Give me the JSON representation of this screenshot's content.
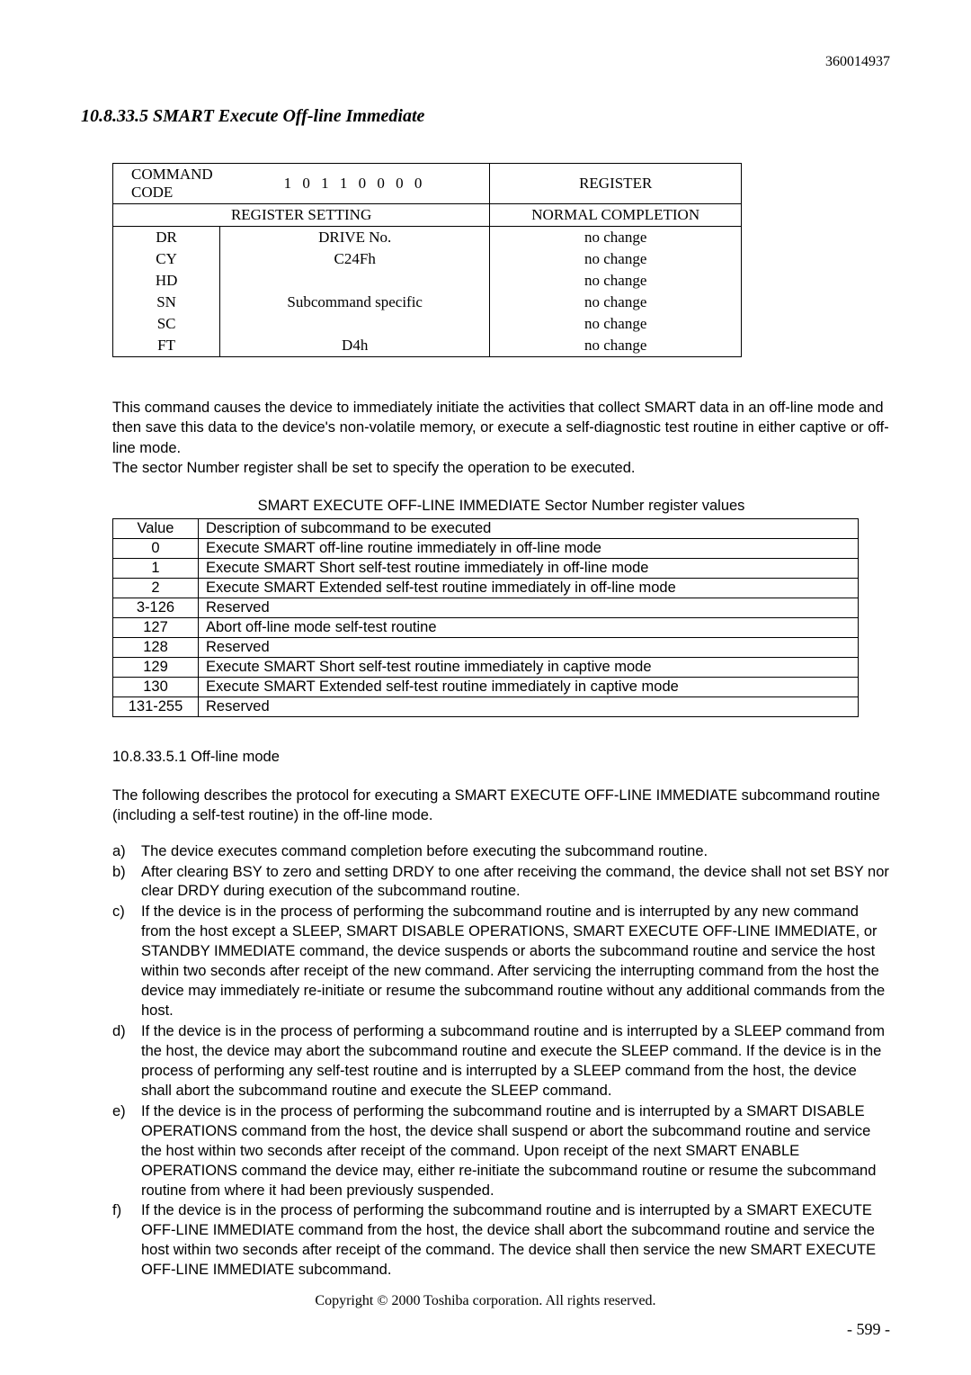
{
  "doc_number": "360014937",
  "section_heading": "10.8.33.5  SMART Execute Off-line Immediate",
  "reg_table": {
    "header1": {
      "label": "COMMAND CODE",
      "code": "1 0 1 1 0 0 0 0",
      "register": "REGISTER"
    },
    "header2": {
      "setting": "REGISTER SETTING",
      "completion": "NORMAL COMPLETION"
    },
    "rows": [
      {
        "reg": "DR",
        "setting": "DRIVE No.",
        "completion": "no change"
      },
      {
        "reg": "CY",
        "setting": "C24Fh",
        "completion": "no change"
      },
      {
        "reg": "HD",
        "setting": "",
        "completion": "no change"
      },
      {
        "reg": "SN",
        "setting": "Subcommand specific",
        "completion": "no change"
      },
      {
        "reg": "SC",
        "setting": "",
        "completion": "no change"
      },
      {
        "reg": "FT",
        "setting": "D4h",
        "completion": "no change"
      }
    ]
  },
  "desc_p1": "This command causes the device to immediately initiate the activities that collect SMART data in an off-line mode and then save this data to the device's non-volatile memory, or execute a self-diagnostic test routine in either captive or off-line mode.",
  "desc_p2": "The sector Number register shall be set to specify the operation to be executed.",
  "sector_caption": "SMART EXECUTE OFF-LINE IMMEDIATE Sector Number register values",
  "sector_table": {
    "header": {
      "value": "Value",
      "desc": "Description of subcommand to be executed"
    },
    "rows": [
      {
        "value": "0",
        "desc": "Execute SMART off-line routine immediately in off-line mode"
      },
      {
        "value": "1",
        "desc": "Execute SMART Short self-test routine immediately in off-line mode"
      },
      {
        "value": "2",
        "desc": "Execute SMART Extended self-test routine immediately in off-line mode"
      },
      {
        "value": "3-126",
        "desc": "Reserved"
      },
      {
        "value": "127",
        "desc": "Abort off-line mode self-test routine"
      },
      {
        "value": "128",
        "desc": "Reserved"
      },
      {
        "value": "129",
        "desc": "Execute SMART Short self-test routine immediately in captive mode"
      },
      {
        "value": "130",
        "desc": "Execute SMART Extended self-test routine immediately in captive mode"
      },
      {
        "value": "131-255",
        "desc": "Reserved"
      }
    ]
  },
  "subheading": "10.8.33.5.1  Off-line mode",
  "protocol_intro": "The following describes the protocol for executing a SMART EXECUTE OFF-LINE IMMEDIATE subcommand routine (including a self-test routine) in the off-line mode.",
  "protocol_list": [
    {
      "marker": "a)",
      "text": "The device executes command completion before executing the subcommand routine."
    },
    {
      "marker": "b)",
      "text": "After clearing BSY to zero and setting DRDY to one after receiving the command, the device shall not set BSY nor clear DRDY during execution of the subcommand routine."
    },
    {
      "marker": "c)",
      "text": "If the device is in the process of performing the subcommand routine and is interrupted by any new command from the host except a SLEEP, SMART DISABLE OPERATIONS, SMART EXECUTE OFF-LINE IMMEDIATE, or STANDBY IMMEDIATE command, the device suspends or aborts the subcommand routine and service the host within two seconds after receipt of the new command.   After servicing the interrupting command from the host the device may immediately re-initiate or resume the subcommand routine without any additional commands from the host."
    },
    {
      "marker": "d)",
      "text": "If the device is in the process of performing a subcommand routine and is interrupted by a SLEEP command from the host, the device may abort the subcommand routine and execute the SLEEP command.   If the device is in the process of performing any self-test routine and is interrupted by a SLEEP command from the host, the device shall abort the subcommand routine and execute the SLEEP command."
    },
    {
      "marker": "e)",
      "text": "If the device is in the process of performing the subcommand routine and is interrupted by a SMART DISABLE OPERATIONS command from the host, the device shall suspend or abort the subcommand routine and service the host within two seconds after receipt of the command.   Upon receipt of the next SMART ENABLE OPERATIONS command the device may, either re-initiate the subcommand routine or resume the subcommand routine from where it had been previously suspended."
    },
    {
      "marker": "f)",
      "text": "If the device is in the process of performing the subcommand routine and is interrupted by a SMART EXECUTE OFF-LINE IMMEDIATE command from the host, the device shall abort the subcommand routine and service the host within two seconds after receipt of the command.   The device shall then service the new SMART EXECUTE OFF-LINE IMMEDIATE subcommand."
    }
  ],
  "copyright": "Copyright © 2000 Toshiba corporation. All rights reserved.",
  "page_num": "- 599 -"
}
